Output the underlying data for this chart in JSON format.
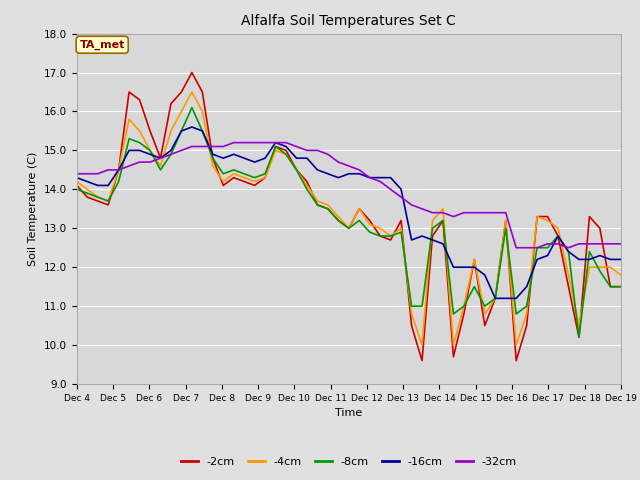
{
  "title": "Alfalfa Soil Temperatures Set C",
  "xlabel": "Time",
  "ylabel": "Soil Temperature (C)",
  "ylim": [
    9.0,
    18.0
  ],
  "yticks": [
    9.0,
    10.0,
    11.0,
    12.0,
    13.0,
    14.0,
    15.0,
    16.0,
    17.0,
    18.0
  ],
  "x_labels": [
    "Dec 4",
    "Dec 5",
    "Dec 6",
    "Dec 7",
    "Dec 8",
    "Dec 9",
    "Dec 10",
    "Dec 11",
    "Dec 12",
    "Dec 13",
    "Dec 14",
    "Dec 15",
    "Dec 16",
    "Dec 17",
    "Dec 18",
    "Dec 19"
  ],
  "series": {
    "-2cm": {
      "color": "#cc0000",
      "lw": 1.2,
      "y": [
        14.1,
        13.8,
        13.7,
        13.6,
        14.5,
        16.5,
        16.3,
        15.5,
        14.8,
        16.2,
        16.5,
        17.0,
        16.5,
        14.8,
        14.1,
        14.3,
        14.2,
        14.1,
        14.3,
        15.1,
        15.0,
        14.5,
        14.2,
        13.6,
        13.5,
        13.2,
        13.0,
        13.5,
        13.2,
        12.8,
        12.7,
        13.2,
        10.5,
        9.6,
        12.8,
        13.2,
        9.7,
        10.8,
        12.2,
        10.5,
        11.2,
        13.2,
        9.6,
        10.5,
        13.3,
        13.3,
        12.8,
        11.5,
        10.2,
        13.3,
        13.0,
        11.5,
        11.5
      ]
    },
    "-4cm": {
      "color": "#ff9900",
      "lw": 1.2,
      "y": [
        14.2,
        14.0,
        13.8,
        13.7,
        14.5,
        15.8,
        15.5,
        15.0,
        14.6,
        15.5,
        16.0,
        16.5,
        16.0,
        14.6,
        14.2,
        14.4,
        14.3,
        14.2,
        14.3,
        15.0,
        14.9,
        14.5,
        14.1,
        13.7,
        13.6,
        13.3,
        13.0,
        13.5,
        13.1,
        13.0,
        12.8,
        13.0,
        10.8,
        10.0,
        13.2,
        13.5,
        10.0,
        11.0,
        12.2,
        10.8,
        11.2,
        13.2,
        10.0,
        10.8,
        13.3,
        13.2,
        13.0,
        11.8,
        10.5,
        12.0,
        12.0,
        12.0,
        11.8
      ]
    },
    "-8cm": {
      "color": "#009900",
      "lw": 1.2,
      "y": [
        14.0,
        13.9,
        13.8,
        13.7,
        14.2,
        15.3,
        15.2,
        15.0,
        14.5,
        14.9,
        15.5,
        16.1,
        15.5,
        14.8,
        14.4,
        14.5,
        14.4,
        14.3,
        14.4,
        15.1,
        14.9,
        14.5,
        14.0,
        13.6,
        13.5,
        13.2,
        13.0,
        13.2,
        12.9,
        12.8,
        12.8,
        12.9,
        11.0,
        11.0,
        13.0,
        13.2,
        10.8,
        11.0,
        11.5,
        11.0,
        11.2,
        13.0,
        10.8,
        11.0,
        12.5,
        12.5,
        12.8,
        12.4,
        10.2,
        12.4,
        11.9,
        11.5,
        11.5
      ]
    },
    "-16cm": {
      "color": "#000099",
      "lw": 1.2,
      "y": [
        14.3,
        14.2,
        14.1,
        14.1,
        14.5,
        15.0,
        15.0,
        14.9,
        14.8,
        15.0,
        15.5,
        15.6,
        15.5,
        14.9,
        14.8,
        14.9,
        14.8,
        14.7,
        14.8,
        15.2,
        15.1,
        14.8,
        14.8,
        14.5,
        14.4,
        14.3,
        14.4,
        14.4,
        14.3,
        14.3,
        14.3,
        14.0,
        12.7,
        12.8,
        12.7,
        12.6,
        12.0,
        12.0,
        12.0,
        11.8,
        11.2,
        11.2,
        11.2,
        11.5,
        12.2,
        12.3,
        12.8,
        12.4,
        12.2,
        12.2,
        12.3,
        12.2,
        12.2
      ]
    },
    "-32cm": {
      "color": "#9900cc",
      "lw": 1.2,
      "y": [
        14.4,
        14.4,
        14.4,
        14.5,
        14.5,
        14.6,
        14.7,
        14.7,
        14.8,
        14.9,
        15.0,
        15.1,
        15.1,
        15.1,
        15.1,
        15.2,
        15.2,
        15.2,
        15.2,
        15.2,
        15.2,
        15.1,
        15.0,
        15.0,
        14.9,
        14.7,
        14.6,
        14.5,
        14.3,
        14.2,
        14.0,
        13.8,
        13.6,
        13.5,
        13.4,
        13.4,
        13.3,
        13.4,
        13.4,
        13.4,
        13.4,
        13.4,
        12.5,
        12.5,
        12.5,
        12.6,
        12.6,
        12.5,
        12.6,
        12.6,
        12.6,
        12.6,
        12.6
      ]
    }
  },
  "ta_met_label": "TA_met",
  "ta_met_bbox_facecolor": "#ffffcc",
  "ta_met_bbox_edgecolor": "#996600",
  "background_color": "#e0e0e0",
  "plot_bg_color": "#d8d8d8",
  "grid_color": "#ffffff",
  "n_points": 53,
  "figsize": [
    6.4,
    4.8
  ],
  "dpi": 100
}
